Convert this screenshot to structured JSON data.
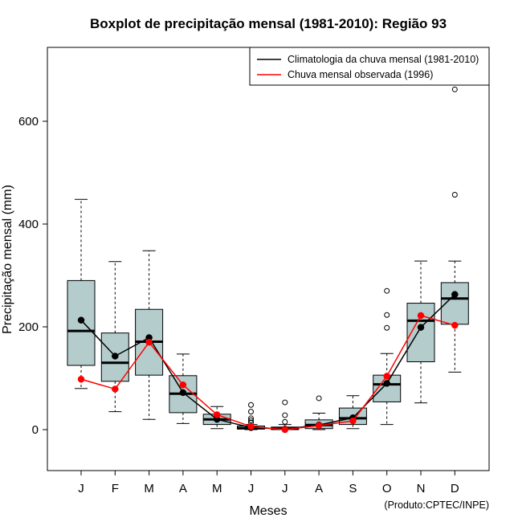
{
  "chart_data": {
    "type": "boxplot",
    "title": "Boxplot de precipitação mensal (1981-2010): Região 93",
    "xlabel": "Meses",
    "ylabel": "Precipitação mensal (mm)",
    "ylim": [
      -80,
      745
    ],
    "yticks": [
      0,
      200,
      400,
      600
    ],
    "categories": [
      "J",
      "F",
      "M",
      "A",
      "M",
      "J",
      "J",
      "A",
      "S",
      "O",
      "N",
      "D"
    ],
    "box_color": "#b4cccc",
    "boxes": [
      {
        "min": 80,
        "q1": 125,
        "median": 192,
        "q3": 290,
        "max": 448,
        "outliers": []
      },
      {
        "min": 35,
        "q1": 94,
        "median": 130,
        "q3": 188,
        "max": 327,
        "outliers": []
      },
      {
        "min": 20,
        "q1": 106,
        "median": 171,
        "q3": 234,
        "max": 348,
        "outliers": []
      },
      {
        "min": 12,
        "q1": 33,
        "median": 70,
        "q3": 105,
        "max": 147,
        "outliers": []
      },
      {
        "min": 2,
        "q1": 10,
        "median": 20,
        "q3": 30,
        "max": 45,
        "outliers": []
      },
      {
        "min": 0,
        "q1": 1,
        "median": 3,
        "q3": 7,
        "max": 10,
        "outliers": [
          14,
          18,
          22,
          35,
          48
        ]
      },
      {
        "min": 0,
        "q1": 0,
        "median": 2,
        "q3": 5,
        "max": 10,
        "outliers": [
          15,
          28,
          53
        ]
      },
      {
        "min": 0,
        "q1": 2,
        "median": 9,
        "q3": 19,
        "max": 32,
        "outliers": [
          61
        ]
      },
      {
        "min": 2,
        "q1": 10,
        "median": 22,
        "q3": 42,
        "max": 66,
        "outliers": []
      },
      {
        "min": 10,
        "q1": 54,
        "median": 88,
        "q3": 106,
        "max": 148,
        "outliers": [
          198,
          223,
          270
        ]
      },
      {
        "min": 52,
        "q1": 132,
        "median": 212,
        "q3": 246,
        "max": 328,
        "outliers": []
      },
      {
        "min": 112,
        "q1": 205,
        "median": 255,
        "q3": 286,
        "max": 328,
        "outliers": [
          457,
          662
        ]
      }
    ],
    "series": [
      {
        "name": "Climatologia da chuva mensal (1981-2010)",
        "color": "#000000",
        "values": [
          213,
          143,
          179,
          72,
          20,
          4,
          1,
          9,
          23,
          90,
          199,
          263
        ]
      },
      {
        "name": "Chuva mensal observada (1996)",
        "color": "#ff0000",
        "values": [
          98,
          79,
          170,
          87,
          29,
          6,
          0,
          8,
          17,
          104,
          222,
          203
        ]
      }
    ],
    "legend_position": "top-right",
    "credit": "(Produto:CPTEC/INPE)"
  }
}
